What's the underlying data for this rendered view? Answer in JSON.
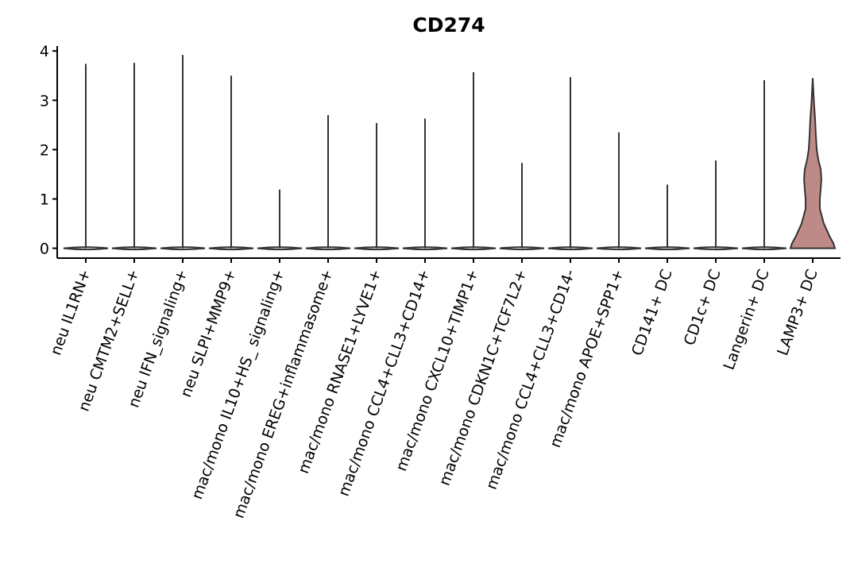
{
  "chart_data": {
    "type": "violin",
    "title": "CD274",
    "categories": [
      "neu IL1RN+",
      "neu CMTM2+SELL+",
      "neu IFN_signaling+",
      "neu SLPI+MMP9+",
      "mac/mono IL10+HS_ signaling+",
      "mac/mono EREG+inflammasome+",
      "mac/mono RNASE1+LYVE1+",
      "mac/mono CCL4+CLL3+CD14+",
      "mac/mono CXCL10+TIMP1+",
      "mac/mono CDKN1C+TCF7L2+",
      "mac/mono CCL4+CLL3+CD14-",
      "mac/mono APOE+SPP1+",
      "CD141+ DC",
      "CD1c+ DC",
      "Langerin+ DC",
      "LAMP3+ DC"
    ],
    "violins": [
      {
        "max": 3.74
      },
      {
        "max": 3.76
      },
      {
        "max": 3.92
      },
      {
        "max": 3.5
      },
      {
        "max": 1.19
      },
      {
        "max": 2.7
      },
      {
        "max": 2.54
      },
      {
        "max": 2.63
      },
      {
        "max": 3.57
      },
      {
        "max": 1.73
      },
      {
        "max": 3.47
      },
      {
        "max": 2.35
      },
      {
        "max": 1.29
      },
      {
        "max": 1.78
      },
      {
        "max": 3.41
      },
      {
        "max": 3.45,
        "color": "#bd8a87",
        "density": {
          "y": [
            0,
            0.1,
            0.25,
            0.5,
            0.8,
            1.0,
            1.2,
            1.4,
            1.6,
            1.8,
            2.0,
            2.3,
            2.6,
            3.0,
            3.45
          ],
          "width": [
            1,
            0.93,
            0.75,
            0.5,
            0.32,
            0.32,
            0.36,
            0.39,
            0.36,
            0.25,
            0.18,
            0.14,
            0.11,
            0.05,
            0
          ]
        }
      }
    ],
    "ylim": [
      -0.2,
      4.1
    ],
    "yticks": [
      0,
      1,
      2,
      3,
      4
    ]
  }
}
